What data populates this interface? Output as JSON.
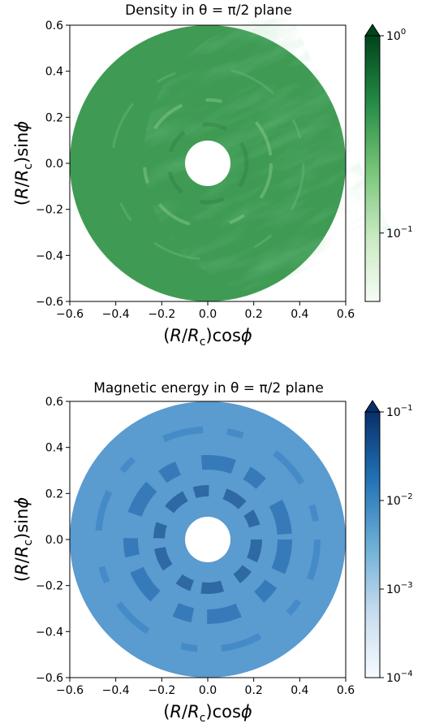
{
  "chart_data": [
    {
      "type": "heatmap",
      "title": "Density in θ = π/2 plane",
      "xlabel": "(R/R_c)cosϕ",
      "ylabel": "(R/R_c)sinϕ",
      "xlim": [
        -0.6,
        0.6
      ],
      "ylim": [
        -0.6,
        0.6
      ],
      "xticks": [
        "−0.6",
        "−0.4",
        "−0.2",
        "0.0",
        "0.2",
        "0.4",
        "0.6"
      ],
      "yticks": [
        "0.6",
        "0.4",
        "0.2",
        "0.0",
        "−0.2",
        "−0.4",
        "−0.6"
      ],
      "domain": {
        "shape": "annulus",
        "r_inner": 0.1,
        "r_outer": 0.6
      },
      "colormap": "Greens",
      "colors": {
        "low": "#f7fcf5",
        "mid": "#41ab5d",
        "high": "#00441b",
        "field": "#3f9b54"
      },
      "colorbar": {
        "scale": "log",
        "range": [
          0.045,
          1.0
        ],
        "extend": "max",
        "ticks": [
          {
            "value": 1.0,
            "base": "10",
            "exp": "0"
          },
          {
            "value": 0.1,
            "base": "10",
            "exp": "−1"
          }
        ]
      },
      "grid": false
    },
    {
      "type": "heatmap",
      "title": "Magnetic energy in θ = π/2 plane",
      "xlabel": "(R/R_c)cosϕ",
      "ylabel": "(R/R_c)sinϕ",
      "xlim": [
        -0.6,
        0.6
      ],
      "ylim": [
        -0.6,
        0.6
      ],
      "xticks": [
        "−0.6",
        "−0.4",
        "−0.2",
        "0.0",
        "0.2",
        "0.4",
        "0.6"
      ],
      "yticks": [
        "0.6",
        "0.4",
        "0.2",
        "0.0",
        "−0.2",
        "−0.4",
        "−0.6"
      ],
      "domain": {
        "shape": "annulus",
        "r_inner": 0.1,
        "r_outer": 0.6
      },
      "colormap": "Blues",
      "colors": {
        "low": "#f7fbff",
        "mid": "#4292c6",
        "high": "#08306b",
        "field": "#5a9bd0"
      },
      "colorbar": {
        "scale": "log",
        "range": [
          0.0001,
          0.1
        ],
        "extend": "max",
        "ticks": [
          {
            "value": 0.1,
            "base": "10",
            "exp": "−1"
          },
          {
            "value": 0.01,
            "base": "10",
            "exp": "−2"
          },
          {
            "value": 0.001,
            "base": "10",
            "exp": "−3"
          },
          {
            "value": 0.0001,
            "base": "10",
            "exp": "−4"
          }
        ]
      },
      "grid": false
    }
  ]
}
